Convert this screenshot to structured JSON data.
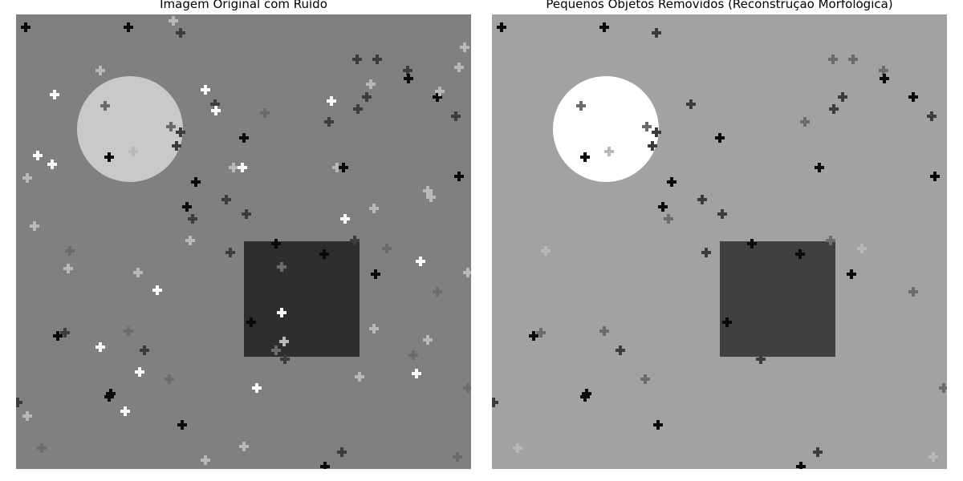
{
  "panels": {
    "left": {
      "title": "Imagem Original com Ruído",
      "background_color": "#808080",
      "circle_color": "#c9c9c9",
      "square_color": "#2e2e2e"
    },
    "right": {
      "title": "Pequenos Objetos Removidos (Reconstrução Morfológica)",
      "background_color": "#a2a2a2",
      "circle_color": "#ffffff",
      "square_color": "#404040"
    }
  },
  "noise_colors": {
    "black": "#0a0a0a",
    "dark": "#3c3c3c",
    "mid": "#6c6c6c",
    "light": "#b8b8b8",
    "white": "#fafafa"
  }
}
